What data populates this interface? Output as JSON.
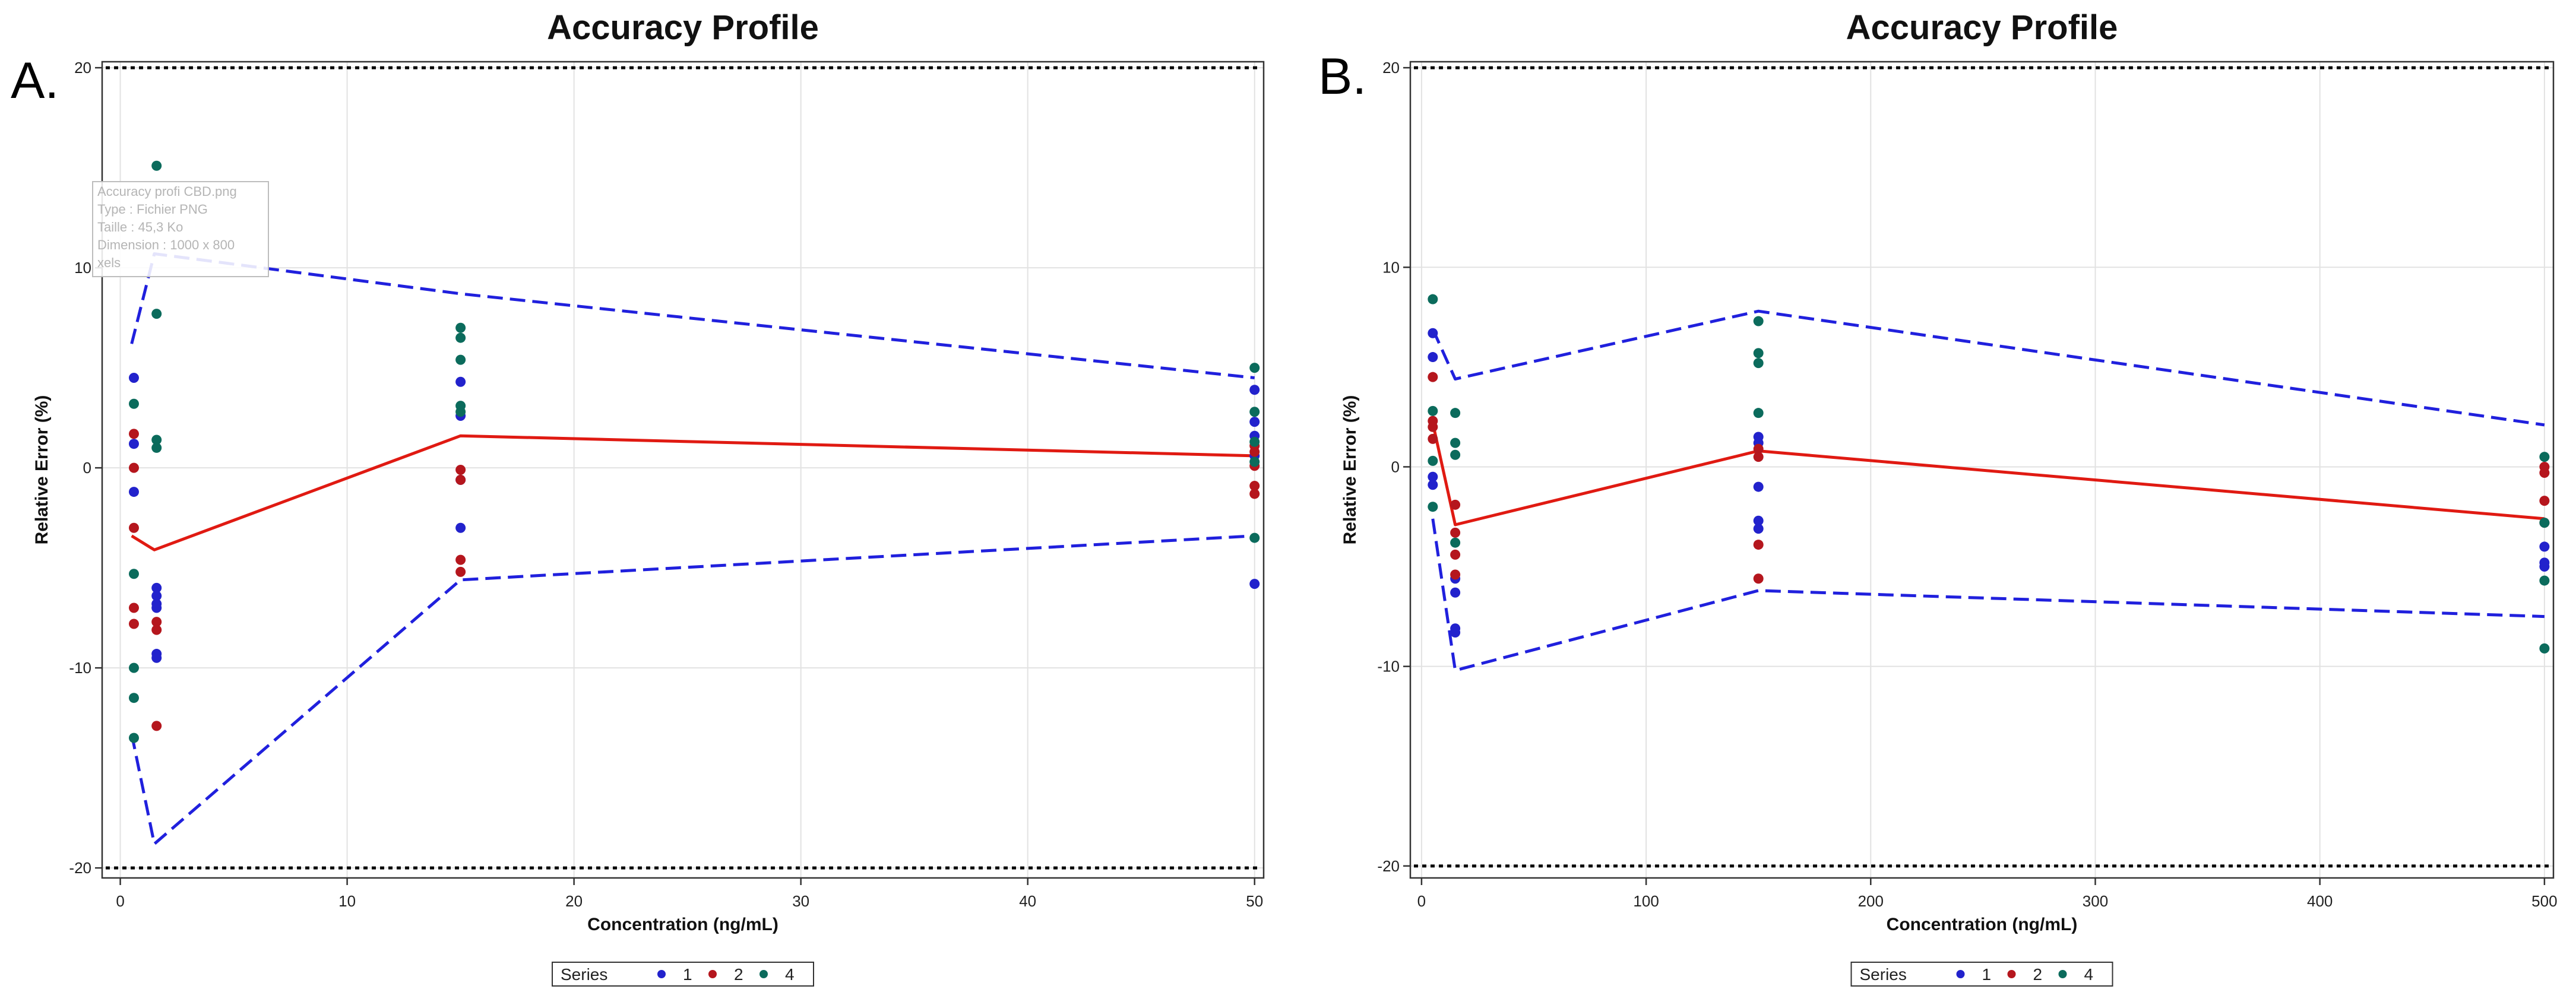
{
  "colors": {
    "series_1": "#2222cc",
    "series_2": "#b5161d",
    "series_4": "#0b6b5c",
    "limits": "#2020dd",
    "mean": "#e01a12",
    "acceptance": "#000000",
    "grid": "#e2e2e2"
  },
  "chart_data": [
    {
      "type": "scatter",
      "panel_label": "A.",
      "title": "Accuracy Profile",
      "xlabel": "Concentration (ng/mL)",
      "ylabel": "Relative Error (%)",
      "xlim": [
        -0.8,
        50.4
      ],
      "ylim": [
        -20.5,
        20.3
      ],
      "xticks": [
        0,
        10,
        20,
        30,
        40,
        50
      ],
      "yticks": [
        -20,
        -10,
        0,
        10,
        20
      ],
      "xtick_labels": [
        "0",
        "10",
        "20",
        "30",
        "40",
        "50"
      ],
      "ytick_labels": [
        "-20",
        "-10",
        "0",
        "10",
        "20"
      ],
      "grid": true,
      "legend": {
        "title": "Series",
        "position": "bottom-center",
        "entries": [
          "1",
          "2",
          "4"
        ]
      },
      "acceptance_limits": [
        -20,
        20
      ],
      "tooltip": {
        "lines": [
          "Accuracy profi CBD.png",
          "Type : Fichier PNG",
          "Taille : 45,3 Ko",
          "Dimension : 1000 x 800",
          "xels"
        ]
      },
      "lines": [
        {
          "name": "upper tolerance limit",
          "style": "dashed",
          "x": [
            0.5,
            1.5,
            15,
            50
          ],
          "y": [
            6.2,
            10.7,
            8.7,
            4.5
          ]
        },
        {
          "name": "mean relative error",
          "style": "solid",
          "x": [
            0.5,
            1.5,
            15,
            50
          ],
          "y": [
            -3.4,
            -4.1,
            1.6,
            0.6
          ]
        },
        {
          "name": "lower tolerance limit",
          "style": "dashed",
          "x": [
            0.5,
            1.5,
            15,
            50
          ],
          "y": [
            -13.3,
            -18.8,
            -5.6,
            -3.4
          ]
        }
      ],
      "series": [
        {
          "name": "1",
          "points": [
            [
              0.6,
              4.5
            ],
            [
              0.6,
              1.2
            ],
            [
              0.6,
              -1.2
            ],
            [
              1.6,
              -6.0
            ],
            [
              1.6,
              -6.4
            ],
            [
              1.6,
              -6.8
            ],
            [
              1.6,
              -7.0
            ],
            [
              1.6,
              -9.3
            ],
            [
              1.6,
              -9.5
            ],
            [
              15,
              4.3
            ],
            [
              15,
              2.6
            ],
            [
              15,
              -0.6
            ],
            [
              15,
              -3.0
            ],
            [
              50,
              3.9
            ],
            [
              50,
              2.3
            ],
            [
              50,
              1.6
            ],
            [
              50,
              0.6
            ],
            [
              50,
              -5.8
            ]
          ]
        },
        {
          "name": "2",
          "points": [
            [
              0.6,
              1.7
            ],
            [
              0.6,
              0.0
            ],
            [
              0.6,
              -3.0
            ],
            [
              0.6,
              -7.0
            ],
            [
              0.6,
              -7.8
            ],
            [
              1.6,
              -7.7
            ],
            [
              1.6,
              -8.1
            ],
            [
              1.6,
              -12.9
            ],
            [
              15,
              -0.1
            ],
            [
              15,
              -0.6
            ],
            [
              15,
              -4.6
            ],
            [
              15,
              -5.2
            ],
            [
              50,
              1.1
            ],
            [
              50,
              0.8
            ],
            [
              50,
              0.1
            ],
            [
              50,
              -0.9
            ],
            [
              50,
              -1.3
            ]
          ]
        },
        {
          "name": "4",
          "points": [
            [
              0.6,
              3.2
            ],
            [
              0.6,
              -5.3
            ],
            [
              0.6,
              -10.0
            ],
            [
              0.6,
              -11.5
            ],
            [
              0.6,
              -13.5
            ],
            [
              1.6,
              15.1
            ],
            [
              1.6,
              7.7
            ],
            [
              1.6,
              1.4
            ],
            [
              1.6,
              1.0
            ],
            [
              15,
              7.0
            ],
            [
              15,
              6.5
            ],
            [
              15,
              5.4
            ],
            [
              15,
              3.1
            ],
            [
              15,
              2.8
            ],
            [
              50,
              5.0
            ],
            [
              50,
              2.8
            ],
            [
              50,
              1.3
            ],
            [
              50,
              0.3
            ],
            [
              50,
              -3.5
            ]
          ]
        }
      ]
    },
    {
      "type": "scatter",
      "panel_label": "B.",
      "title": "Accuracy Profile",
      "xlabel": "Concentration (ng/mL)",
      "ylabel": "Relative Error (%)",
      "xlim": [
        -5,
        504
      ],
      "ylim": [
        -20.6,
        20.3
      ],
      "xticks": [
        0,
        100,
        200,
        300,
        400,
        500
      ],
      "yticks": [
        -20,
        -10,
        0,
        10,
        20
      ],
      "xtick_labels": [
        "0",
        "100",
        "200",
        "300",
        "400",
        "500"
      ],
      "ytick_labels": [
        "-20",
        "-10",
        "0",
        "10",
        "20"
      ],
      "grid": true,
      "legend": {
        "title": "Series",
        "position": "bottom-center",
        "entries": [
          "1",
          "2",
          "4"
        ]
      },
      "acceptance_limits": [
        -20,
        20
      ],
      "lines": [
        {
          "name": "upper tolerance limit",
          "style": "dashed",
          "x": [
            5,
            15,
            150,
            500
          ],
          "y": [
            6.9,
            4.4,
            7.8,
            2.1
          ]
        },
        {
          "name": "mean relative error",
          "style": "solid",
          "x": [
            5,
            15,
            150,
            500
          ],
          "y": [
            2.2,
            -2.9,
            0.8,
            -2.6
          ]
        },
        {
          "name": "lower tolerance limit",
          "style": "dashed",
          "x": [
            5,
            15,
            150,
            500
          ],
          "y": [
            -2.6,
            -10.2,
            -6.2,
            -7.5
          ]
        }
      ],
      "series": [
        {
          "name": "1",
          "points": [
            [
              5,
              6.7
            ],
            [
              5,
              5.5
            ],
            [
              5,
              -0.5
            ],
            [
              5,
              -0.9
            ],
            [
              15,
              -5.6
            ],
            [
              15,
              -6.3
            ],
            [
              15,
              -8.1
            ],
            [
              15,
              -8.3
            ],
            [
              150,
              1.5
            ],
            [
              150,
              1.2
            ],
            [
              150,
              -1.0
            ],
            [
              150,
              -2.7
            ],
            [
              150,
              -3.1
            ],
            [
              500,
              -4.0
            ],
            [
              500,
              -4.8
            ],
            [
              500,
              -5.0
            ]
          ]
        },
        {
          "name": "2",
          "points": [
            [
              5,
              4.5
            ],
            [
              5,
              2.3
            ],
            [
              5,
              2.0
            ],
            [
              5,
              1.4
            ],
            [
              15,
              -1.9
            ],
            [
              15,
              -3.3
            ],
            [
              15,
              -4.4
            ],
            [
              15,
              -5.4
            ],
            [
              150,
              0.9
            ],
            [
              150,
              0.5
            ],
            [
              150,
              -3.9
            ],
            [
              150,
              -5.6
            ],
            [
              500,
              0.0
            ],
            [
              500,
              -0.3
            ],
            [
              500,
              -1.7
            ],
            [
              500,
              -2.8
            ]
          ]
        },
        {
          "name": "4",
          "points": [
            [
              5,
              8.4
            ],
            [
              5,
              2.8
            ],
            [
              5,
              0.3
            ],
            [
              5,
              -2.0
            ],
            [
              15,
              2.7
            ],
            [
              15,
              1.2
            ],
            [
              15,
              0.6
            ],
            [
              15,
              -3.8
            ],
            [
              150,
              7.3
            ],
            [
              150,
              5.7
            ],
            [
              150,
              5.2
            ],
            [
              150,
              2.7
            ],
            [
              500,
              0.5
            ],
            [
              500,
              -2.8
            ],
            [
              500,
              -5.7
            ],
            [
              500,
              -9.1
            ]
          ]
        }
      ]
    }
  ]
}
